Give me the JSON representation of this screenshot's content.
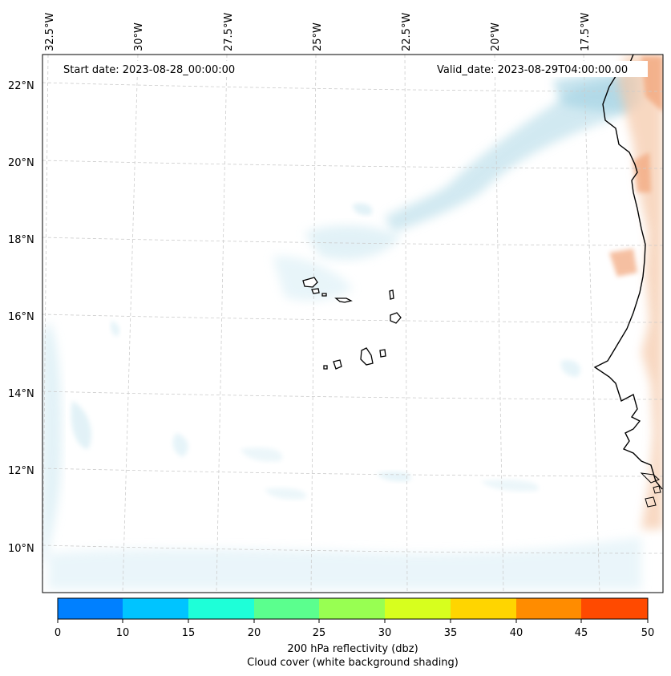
{
  "map": {
    "start_date": "Start date: 2023-08-28_00:00:00",
    "valid_date": "Valid_date: 2023-08-29T04:00:00.00",
    "lon_labels": [
      "32.5°W",
      "30°W",
      "27.5°W",
      "25°W",
      "22.5°W",
      "20°W",
      "17.5°W"
    ],
    "lat_labels": [
      "22°N",
      "20°N",
      "18°N",
      "16°N",
      "14°N",
      "12°N",
      "10°N"
    ],
    "extent": {
      "lon_min": -33.0,
      "lon_max": -15.0,
      "lat_min": 9.0,
      "lat_max": 23.0
    },
    "colors": {
      "land_shading": "#f5c8a8",
      "cloud_shading": "#add8e6",
      "coastline": "#000000",
      "grid": "#cccccc"
    }
  },
  "colorbar": {
    "ticks": [
      "0",
      "10",
      "15",
      "20",
      "25",
      "30",
      "35",
      "40",
      "45",
      "50"
    ],
    "colors": [
      "#0080ff",
      "#00c4ff",
      "#1effd8",
      "#5bff8e",
      "#98ff52",
      "#d7ff1e",
      "#ffd500",
      "#ff8c00",
      "#ff4a00"
    ],
    "label_line1": "200 hPa reflectivity (dbz)",
    "label_line2": "Cloud cover (white background shading)"
  }
}
